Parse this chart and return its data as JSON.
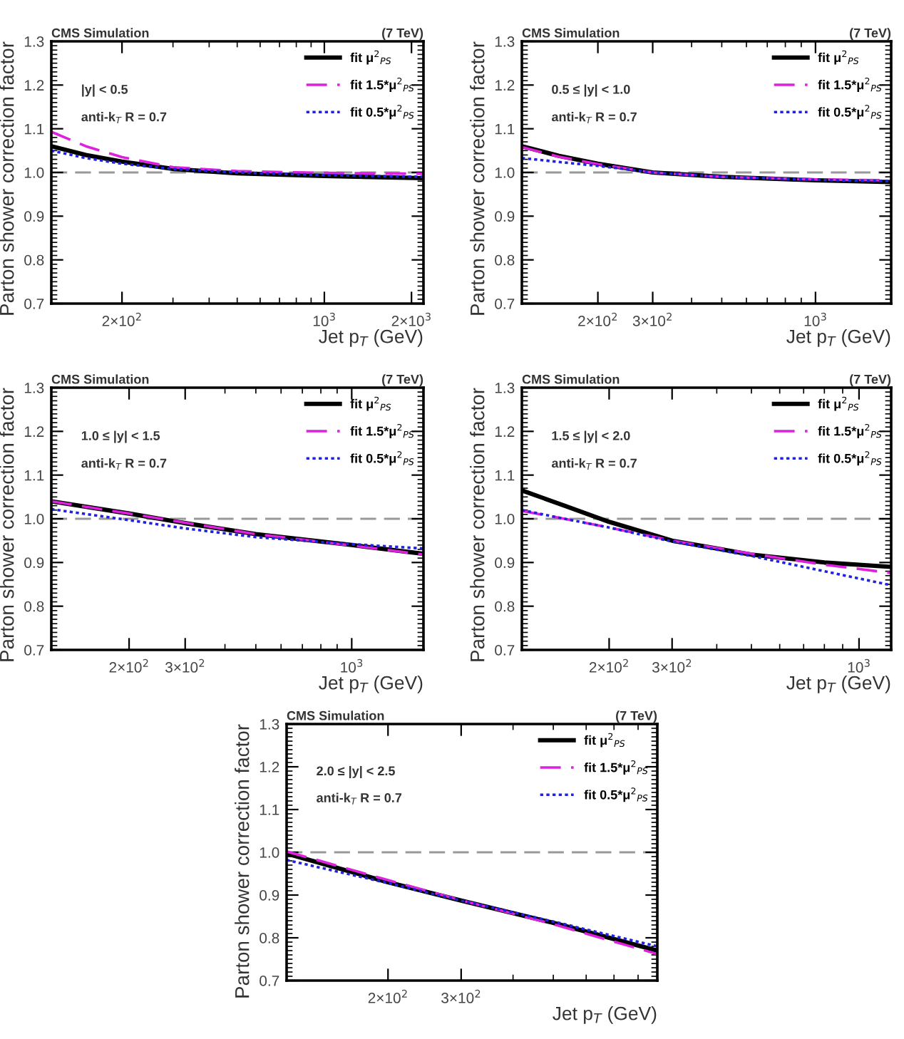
{
  "chart_data": [
    {
      "type": "line",
      "title": "CMS Simulation",
      "subtitle": "(7 TeV)",
      "xlabel": "Jet p$_{T}$ (GeV)",
      "ylabel": "Parton shower correction factor",
      "annotations": [
        "|y| < 0.5",
        "anti-k$_{T}$ R = 0.7"
      ],
      "log": "x",
      "xlim": [
        114,
        2200
      ],
      "xticks": [
        {
          "value": 200,
          "label": "2×10$^{2}$"
        },
        {
          "value": 1000,
          "label": "10$^{3}$"
        },
        {
          "value": 2000,
          "label": "2×10$^{3}$"
        }
      ],
      "ylim": [
        0.7,
        1.3
      ],
      "yticks": [
        {
          "value": 0.7,
          "label": "0.7"
        },
        {
          "value": 0.8,
          "label": "0.8"
        },
        {
          "value": 0.9,
          "label": "0.9"
        },
        {
          "value": 1.0,
          "label": "1.0"
        },
        {
          "value": 1.1,
          "label": "1.1"
        },
        {
          "value": 1.2,
          "label": "1.2"
        },
        {
          "value": 1.3,
          "label": "1.3"
        }
      ],
      "legend": "top right",
      "ref_lines": [
        {
          "axis": "y",
          "value": 1.0,
          "color": "#999999",
          "line_style": "dashed"
        }
      ],
      "series": [
        {
          "name": "fit μ$^{2}$$_{PS}$",
          "color": "#000000",
          "line_style": "solid",
          "x": [
            114,
            150,
            200,
            300,
            500,
            1000,
            2200
          ],
          "values": [
            1.06,
            1.04,
            1.025,
            1.008,
            0.998,
            0.992,
            0.987
          ]
        },
        {
          "name": "fit 1.5*μ$^{2}$$_{PS}$",
          "color": "#dd22dd",
          "line_style": "dashed",
          "x": [
            114,
            150,
            200,
            300,
            500,
            1000,
            2200
          ],
          "values": [
            1.093,
            1.06,
            1.035,
            1.012,
            1.003,
            0.999,
            0.997
          ]
        },
        {
          "name": "fit 0.5*μ$^{2}$$_{PS}$",
          "color": "#2222dd",
          "line_style": "dotted",
          "x": [
            114,
            150,
            200,
            300,
            500,
            1000,
            2200
          ],
          "values": [
            1.05,
            1.033,
            1.02,
            1.008,
            1.0,
            0.994,
            0.99
          ]
        }
      ]
    },
    {
      "type": "line",
      "title": "CMS Simulation",
      "subtitle": "(7 TeV)",
      "xlabel": "Jet p$_{T}$ (GeV)",
      "ylabel": "Parton shower correction factor",
      "annotations": [
        "0.5 ≤ |y| < 1.0",
        "anti-k$_{T}$ R = 0.7"
      ],
      "log": "x",
      "xlim": [
        114,
        1750
      ],
      "xticks": [
        {
          "value": 200,
          "label": "2×10$^{2}$"
        },
        {
          "value": 300,
          "label": "3×10$^{2}$"
        },
        {
          "value": 1000,
          "label": "10$^{3}$"
        }
      ],
      "ylim": [
        0.7,
        1.3
      ],
      "yticks": [
        {
          "value": 0.7,
          "label": "0.7"
        },
        {
          "value": 0.8,
          "label": "0.8"
        },
        {
          "value": 0.9,
          "label": "0.9"
        },
        {
          "value": 1.0,
          "label": "1.0"
        },
        {
          "value": 1.1,
          "label": "1.1"
        },
        {
          "value": 1.2,
          "label": "1.2"
        },
        {
          "value": 1.3,
          "label": "1.3"
        }
      ],
      "legend": "top right",
      "ref_lines": [
        {
          "axis": "y",
          "value": 1.0,
          "color": "#999999",
          "line_style": "dashed"
        }
      ],
      "series": [
        {
          "name": "fit μ$^{2}$$_{PS}$",
          "color": "#000000",
          "line_style": "solid",
          "x": [
            114,
            150,
            200,
            300,
            500,
            1000,
            1750
          ],
          "values": [
            1.06,
            1.038,
            1.02,
            1.0,
            0.99,
            0.982,
            0.978
          ]
        },
        {
          "name": "fit 1.5*μ$^{2}$$_{PS}$",
          "color": "#dd22dd",
          "line_style": "dashed",
          "x": [
            114,
            150,
            200,
            300,
            500,
            1000,
            1750
          ],
          "values": [
            1.058,
            1.036,
            1.019,
            1.0,
            0.99,
            0.984,
            0.982
          ]
        },
        {
          "name": "fit 0.5*μ$^{2}$$_{PS}$",
          "color": "#2222dd",
          "line_style": "dotted",
          "x": [
            114,
            150,
            200,
            300,
            500,
            1000,
            1750
          ],
          "values": [
            1.033,
            1.024,
            1.015,
            1.0,
            0.99,
            0.983,
            0.98
          ]
        }
      ]
    },
    {
      "type": "line",
      "title": "CMS Simulation",
      "subtitle": "(7 TeV)",
      "xlabel": "Jet p$_{T}$ (GeV)",
      "ylabel": "Parton shower correction factor",
      "annotations": [
        "1.0 ≤ |y| < 1.5",
        "anti-k$_{T}$ R = 0.7"
      ],
      "log": "x",
      "xlim": [
        114,
        1680
      ],
      "xticks": [
        {
          "value": 200,
          "label": "2×10$^{2}$"
        },
        {
          "value": 300,
          "label": "3×10$^{2}$"
        },
        {
          "value": 1000,
          "label": "10$^{3}$"
        }
      ],
      "ylim": [
        0.7,
        1.3
      ],
      "yticks": [
        {
          "value": 0.7,
          "label": "0.7"
        },
        {
          "value": 0.8,
          "label": "0.8"
        },
        {
          "value": 0.9,
          "label": "0.9"
        },
        {
          "value": 1.0,
          "label": "1.0"
        },
        {
          "value": 1.1,
          "label": "1.1"
        },
        {
          "value": 1.2,
          "label": "1.2"
        },
        {
          "value": 1.3,
          "label": "1.3"
        }
      ],
      "legend": "top right",
      "ref_lines": [
        {
          "axis": "y",
          "value": 1.0,
          "color": "#999999",
          "line_style": "dashed"
        }
      ],
      "series": [
        {
          "name": "fit μ$^{2}$$_{PS}$",
          "color": "#000000",
          "line_style": "solid",
          "x": [
            114,
            200,
            300,
            500,
            1000,
            1680
          ],
          "values": [
            1.04,
            1.012,
            0.99,
            0.965,
            0.94,
            0.92
          ]
        },
        {
          "name": "fit 1.5*μ$^{2}$$_{PS}$",
          "color": "#dd22dd",
          "line_style": "dashed",
          "x": [
            114,
            200,
            300,
            500,
            1000,
            1680
          ],
          "values": [
            1.04,
            1.012,
            0.991,
            0.965,
            0.939,
            0.918
          ]
        },
        {
          "name": "fit 0.5*μ$^{2}$$_{PS}$",
          "color": "#2222dd",
          "line_style": "dotted",
          "x": [
            114,
            200,
            300,
            500,
            1000,
            1680
          ],
          "values": [
            1.022,
            0.997,
            0.978,
            0.958,
            0.942,
            0.932
          ]
        }
      ]
    },
    {
      "type": "line",
      "title": "CMS Simulation",
      "subtitle": "(7 TeV)",
      "xlabel": "Jet p$_{T}$ (GeV)",
      "ylabel": "Parton shower correction factor",
      "annotations": [
        "1.5 ≤ |y| < 2.0",
        "anti-k$_{T}$ R = 0.7"
      ],
      "log": "x",
      "xlim": [
        114,
        1230
      ],
      "xticks": [
        {
          "value": 200,
          "label": "2×10$^{2}$"
        },
        {
          "value": 300,
          "label": "3×10$^{2}$"
        },
        {
          "value": 1000,
          "label": "10$^{3}$"
        }
      ],
      "ylim": [
        0.7,
        1.3
      ],
      "yticks": [
        {
          "value": 0.7,
          "label": "0.7"
        },
        {
          "value": 0.8,
          "label": "0.8"
        },
        {
          "value": 0.9,
          "label": "0.9"
        },
        {
          "value": 1.0,
          "label": "1.0"
        },
        {
          "value": 1.1,
          "label": "1.1"
        },
        {
          "value": 1.2,
          "label": "1.2"
        },
        {
          "value": 1.3,
          "label": "1.3"
        }
      ],
      "legend": "top right",
      "ref_lines": [
        {
          "axis": "y",
          "value": 1.0,
          "color": "#999999",
          "line_style": "dashed"
        }
      ],
      "series": [
        {
          "name": "fit μ$^{2}$$_{PS}$",
          "color": "#000000",
          "line_style": "solid",
          "x": [
            114,
            150,
            200,
            300,
            500,
            800,
            1230
          ],
          "values": [
            1.065,
            1.03,
            0.993,
            0.95,
            0.918,
            0.9,
            0.89
          ]
        },
        {
          "name": "fit 1.5*μ$^{2}$$_{PS}$",
          "color": "#dd22dd",
          "line_style": "dashed",
          "x": [
            114,
            150,
            200,
            300,
            500,
            800,
            1230
          ],
          "values": [
            1.018,
            1.0,
            0.98,
            0.95,
            0.92,
            0.895,
            0.876
          ]
        },
        {
          "name": "fit 0.5*μ$^{2}$$_{PS}$",
          "color": "#2222dd",
          "line_style": "dotted",
          "x": [
            114,
            150,
            200,
            300,
            500,
            800,
            1230
          ],
          "values": [
            1.02,
            1.0,
            0.98,
            0.948,
            0.915,
            0.88,
            0.848
          ]
        }
      ]
    },
    {
      "type": "line",
      "title": "CMS Simulation",
      "subtitle": "(7 TeV)",
      "xlabel": "Jet p$_{T}$ (GeV)",
      "ylabel": "Parton shower correction factor",
      "annotations": [
        "2.0 ≤ |y| < 2.5",
        "anti-k$_{T}$ R = 0.7"
      ],
      "log": "x",
      "xlim": [
        114,
        890
      ],
      "xticks": [
        {
          "value": 200,
          "label": "2×10$^{2}$"
        },
        {
          "value": 300,
          "label": "3×10$^{2}$"
        }
      ],
      "ylim": [
        0.7,
        1.3
      ],
      "yticks": [
        {
          "value": 0.7,
          "label": "0.7"
        },
        {
          "value": 0.8,
          "label": "0.8"
        },
        {
          "value": 0.9,
          "label": "0.9"
        },
        {
          "value": 1.0,
          "label": "1.0"
        },
        {
          "value": 1.1,
          "label": "1.1"
        },
        {
          "value": 1.2,
          "label": "1.2"
        },
        {
          "value": 1.3,
          "label": "1.3"
        }
      ],
      "legend": "top right",
      "ref_lines": [
        {
          "axis": "y",
          "value": 1.0,
          "color": "#999999",
          "line_style": "dashed"
        }
      ],
      "series": [
        {
          "name": "fit μ$^{2}$$_{PS}$",
          "color": "#000000",
          "line_style": "solid",
          "x": [
            114,
            200,
            300,
            500,
            890
          ],
          "values": [
            0.997,
            0.93,
            0.887,
            0.835,
            0.77
          ]
        },
        {
          "name": "fit 1.5*μ$^{2}$$_{PS}$",
          "color": "#dd22dd",
          "line_style": "dashed",
          "x": [
            114,
            200,
            300,
            500,
            890
          ],
          "values": [
            1.002,
            0.935,
            0.888,
            0.832,
            0.762
          ]
        },
        {
          "name": "fit 0.5*μ$^{2}$$_{PS}$",
          "color": "#2222dd",
          "line_style": "dotted",
          "x": [
            114,
            200,
            300,
            500,
            890
          ],
          "values": [
            0.982,
            0.928,
            0.887,
            0.838,
            0.78
          ]
        }
      ]
    }
  ]
}
